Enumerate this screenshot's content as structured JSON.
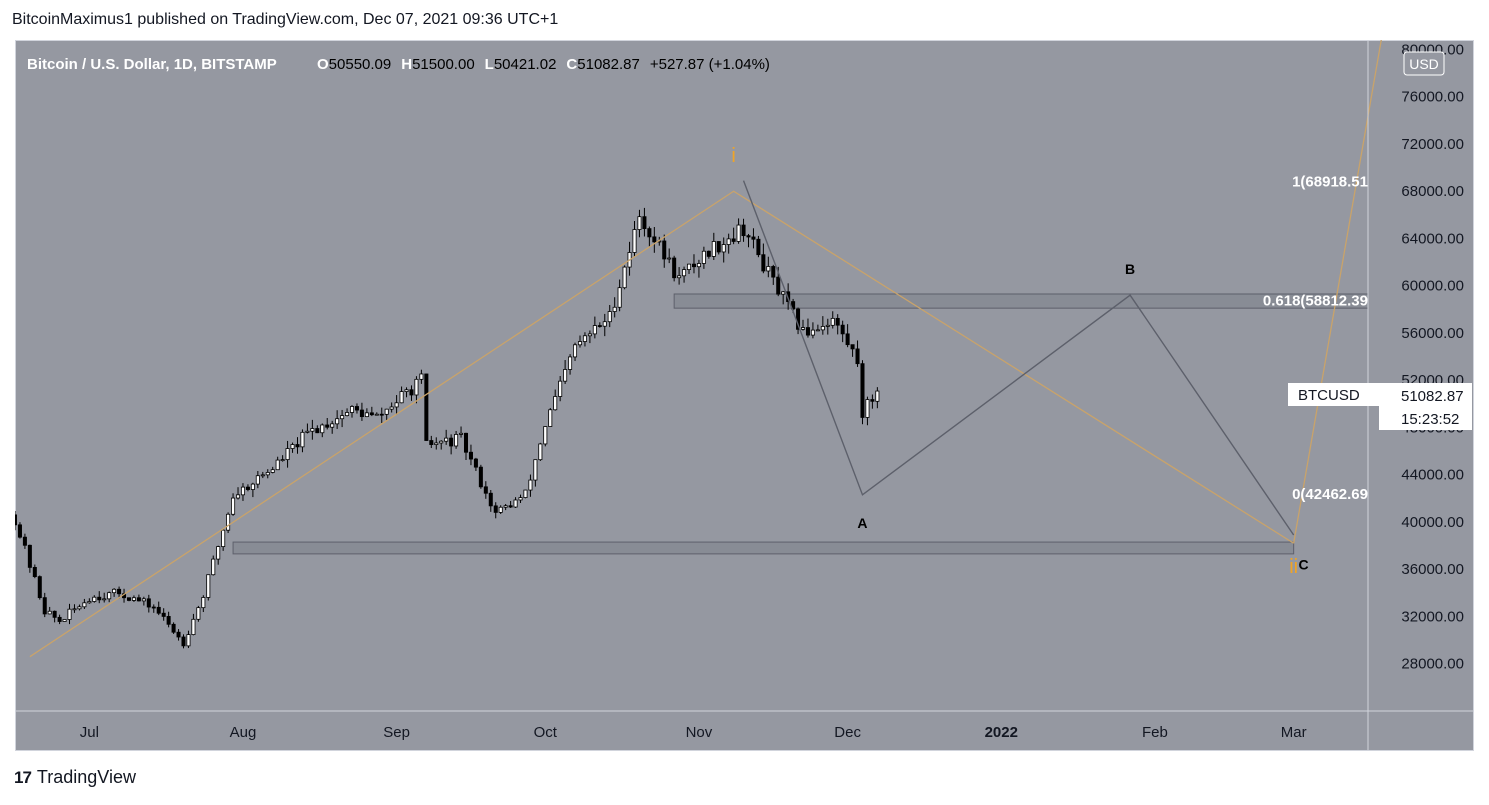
{
  "header": {
    "publisher_line": "BitcoinMaximus1 published on TradingView.com, Dec 07, 2021 09:36 UTC+1"
  },
  "footer": {
    "brand": "TradingView",
    "logo_glyph": "17"
  },
  "colors": {
    "background": "#9598a1",
    "wave_line": "#c9a36a",
    "wave_label": "#f0a426",
    "pattern_line": "#5d606b",
    "candle_up": "#ffffff",
    "candle_down": "#000000",
    "zone_fill": "#868993"
  },
  "chart_data": {
    "type": "candlestick",
    "title": "Bitcoin / U.S. Dollar, 1D, BITSTAMP",
    "ohlc_legend": {
      "o_label": "O",
      "o_value": "50550.09",
      "h_label": "H",
      "h_value": "51500.00",
      "l_label": "L",
      "l_value": "50421.02",
      "c_label": "C",
      "c_value": "51082.87",
      "change": "+527.87 (+1.04%)"
    },
    "currency": "USD",
    "symbol_badge": {
      "symbol": "BTCUSD",
      "price": "51082.87",
      "countdown": "15:23:52"
    },
    "y_axis": {
      "range": [
        24000,
        80800
      ],
      "ticks": [
        "80000.00",
        "76000.00",
        "72000.00",
        "68000.00",
        "64000.00",
        "60000.00",
        "56000.00",
        "52000.00",
        "48000.00",
        "44000.00",
        "40000.00",
        "36000.00",
        "32000.00",
        "28000.00"
      ]
    },
    "x_axis": {
      "range": [
        "2021-06-16",
        "2022-03-16"
      ],
      "ticks": [
        {
          "date": "2021-07-01",
          "label": "Jul"
        },
        {
          "date": "2021-08-01",
          "label": "Aug"
        },
        {
          "date": "2021-09-01",
          "label": "Sep"
        },
        {
          "date": "2021-10-01",
          "label": "Oct"
        },
        {
          "date": "2021-11-01",
          "label": "Nov"
        },
        {
          "date": "2021-12-01",
          "label": "Dec"
        },
        {
          "date": "2022-01-01",
          "label": "2022"
        },
        {
          "date": "2022-02-01",
          "label": "Feb"
        },
        {
          "date": "2022-03-01",
          "label": "Mar"
        }
      ]
    },
    "anchors": [
      {
        "date": "2021-06-16",
        "close": 40200
      },
      {
        "date": "2021-06-22",
        "close": 32500
      },
      {
        "date": "2021-06-25",
        "close": 31600
      },
      {
        "date": "2021-07-01",
        "close": 33600
      },
      {
        "date": "2021-07-07",
        "close": 34000
      },
      {
        "date": "2021-07-14",
        "close": 32800
      },
      {
        "date": "2021-07-20",
        "close": 29800
      },
      {
        "date": "2021-07-24",
        "close": 33800
      },
      {
        "date": "2021-07-30",
        "close": 42200
      },
      {
        "date": "2021-08-07",
        "close": 44600
      },
      {
        "date": "2021-08-14",
        "close": 47500
      },
      {
        "date": "2021-08-23",
        "close": 49500
      },
      {
        "date": "2021-08-28",
        "close": 48800
      },
      {
        "date": "2021-09-06",
        "close": 52000
      },
      {
        "date": "2021-09-07",
        "close": 46500
      },
      {
        "date": "2021-09-14",
        "close": 47000
      },
      {
        "date": "2021-09-21",
        "close": 40700
      },
      {
        "date": "2021-09-27",
        "close": 42300
      },
      {
        "date": "2021-10-01",
        "close": 48200
      },
      {
        "date": "2021-10-07",
        "close": 54800
      },
      {
        "date": "2021-10-14",
        "close": 57400
      },
      {
        "date": "2021-10-20",
        "close": 65900
      },
      {
        "date": "2021-10-28",
        "close": 60600
      },
      {
        "date": "2021-11-03",
        "close": 63000
      },
      {
        "date": "2021-11-10",
        "close": 64900
      },
      {
        "date": "2021-11-16",
        "close": 60300
      },
      {
        "date": "2021-11-22",
        "close": 56000
      },
      {
        "date": "2021-11-28",
        "close": 57200
      },
      {
        "date": "2021-12-03",
        "close": 53700
      },
      {
        "date": "2021-12-04",
        "close": 49300
      },
      {
        "date": "2021-12-07",
        "close": 51082.87
      }
    ],
    "support_zones": [
      {
        "from": "2021-10-27",
        "to": "2022-03-16",
        "low": 58100,
        "high": 59300
      },
      {
        "from": "2021-07-30",
        "to": "2022-03-01",
        "low": 37300,
        "high": 38300
      }
    ],
    "fib_levels": [
      {
        "label": "1(68918.51",
        "price": 68918.51
      },
      {
        "label": "0.618(58812.39",
        "price": 58812.39
      },
      {
        "label": "0(42462.69",
        "price": 42462.69
      }
    ],
    "wave_lines": [
      {
        "points": [
          [
            "2021-06-19",
            28600
          ],
          [
            "2021-11-08",
            68000
          ],
          [
            "2022-03-01",
            38200
          ]
        ]
      },
      {
        "points": [
          [
            "2022-03-01",
            38200
          ],
          [
            "2022-03-20",
            84000
          ]
        ]
      }
    ],
    "pattern_lines": [
      {
        "points": [
          [
            "2021-11-10",
            68900
          ],
          [
            "2021-12-04",
            42300
          ],
          [
            "2022-01-27",
            59200
          ],
          [
            "2022-03-01",
            38900
          ]
        ]
      }
    ],
    "wave_labels": [
      {
        "text": "i",
        "date": "2021-11-08",
        "price": 71000,
        "role": "wave"
      },
      {
        "text": "ii",
        "date": "2022-03-01",
        "price": 36200,
        "role": "wave"
      },
      {
        "text": "A",
        "date": "2021-12-04",
        "price": 40000,
        "role": "pattern"
      },
      {
        "text": "B",
        "date": "2022-01-27",
        "price": 61500,
        "role": "pattern"
      },
      {
        "text": "C",
        "date": "2022-03-03",
        "price": 36500,
        "role": "pattern"
      }
    ]
  }
}
